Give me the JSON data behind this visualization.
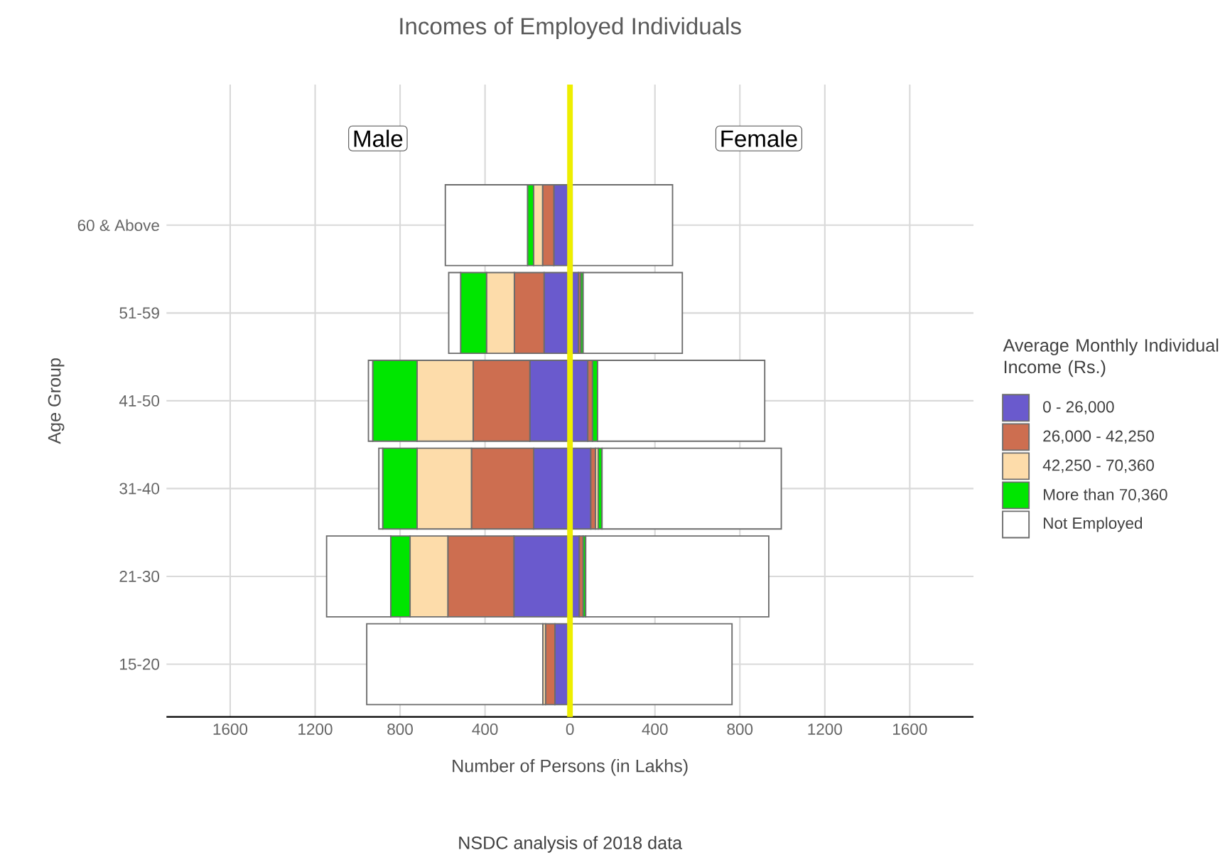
{
  "chart_data": {
    "type": "bar",
    "orientation": "horizontal",
    "stacked": true,
    "title": "Incomes of Employed Individuals",
    "xlabel": "Number of Persons (in Lakhs)",
    "ylabel": "Age Group",
    "legend_title": "Average Monthly Individual Income (Rs.)",
    "categories": [
      "60 & Above",
      "51-59",
      "41-50",
      "31-40",
      "21-30",
      "15-20"
    ],
    "series": [
      {
        "name": "0 - 26,000",
        "color": "#6a5acd",
        "values": [
          -76,
          -122,
          -189,
          -171,
          -264,
          -71
        ]
      },
      {
        "name": "26,000 - 42,250",
        "color": "#cd6e50",
        "values": [
          -53,
          -140,
          -267,
          -293,
          -311,
          -44
        ]
      },
      {
        "name": "42,250 - 70,360",
        "color": "#fddcaa",
        "values": [
          -42,
          -131,
          -264,
          -256,
          -178,
          -13
        ]
      },
      {
        "name": "More than 70,360",
        "color": "#00e600",
        "values": [
          -29,
          -122,
          -209,
          -162,
          -91,
          null
        ]
      },
      {
        "name": "Not Employed",
        "color": "#ffffff",
        "values": [
          -387,
          -56,
          -20,
          -18,
          -302,
          -829
        ]
      },
      {
        "color": "#6a5acd",
        "values": [
          8,
          40,
          84,
          98,
          44,
          4
        ]
      },
      {
        "color": "#cd6e50",
        "values": [
          null,
          11,
          22,
          22,
          18,
          1
        ]
      },
      {
        "color": "#fddcaa",
        "values": [
          1,
          null,
          null,
          13,
          null,
          1
        ]
      },
      {
        "color": "#00e600",
        "values": [
          1,
          11,
          24,
          18,
          12,
          1
        ]
      },
      {
        "color": "#ffffff",
        "values": [
          473,
          467,
          787,
          844,
          862,
          756
        ]
      }
    ],
    "xlim": [
      -1900,
      1900
    ],
    "xticks": [
      {
        "value": -1600,
        "label": "1600"
      },
      {
        "value": -1200,
        "label": "1200"
      },
      {
        "value": -800,
        "label": "800"
      },
      {
        "value": -400,
        "label": "400"
      },
      0,
      400,
      800,
      1200,
      1600
    ],
    "ref_lines": [
      {
        "axis": "x",
        "value": 0,
        "color": "#eeee00"
      }
    ],
    "annotations": [
      "Male",
      "Female",
      "NSDC analysis of 2018 data"
    ],
    "grid": true,
    "legend": "right"
  }
}
